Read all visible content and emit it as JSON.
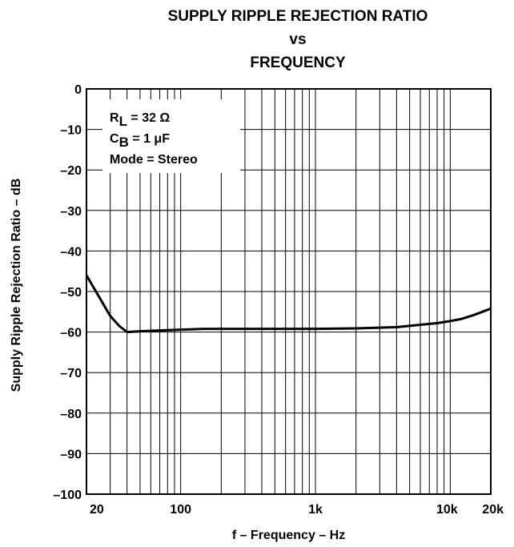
{
  "chart_data": {
    "type": "line",
    "title_lines": [
      "SUPPLY RIPPLE REJECTION RATIO",
      "vs",
      "FREQUENCY"
    ],
    "xlabel": "f – Frequency – Hz",
    "ylabel": "Supply Ripple Rejection Ratio – dB",
    "x_scale": "log",
    "xlim": [
      20,
      20000
    ],
    "ylim": [
      -100,
      0
    ],
    "x_ticks": [
      {
        "value": 20,
        "label": "20"
      },
      {
        "value": 100,
        "label": "100"
      },
      {
        "value": 1000,
        "label": "1k"
      },
      {
        "value": 10000,
        "label": "10k"
      },
      {
        "value": 20000,
        "label": "20k"
      }
    ],
    "y_ticks": [
      {
        "value": 0,
        "label": "0"
      },
      {
        "value": -10,
        "label": "–10"
      },
      {
        "value": -20,
        "label": "–20"
      },
      {
        "value": -30,
        "label": "–30"
      },
      {
        "value": -40,
        "label": "–40"
      },
      {
        "value": -50,
        "label": "–50"
      },
      {
        "value": -60,
        "label": "–60"
      },
      {
        "value": -70,
        "label": "–70"
      },
      {
        "value": -80,
        "label": "–80"
      },
      {
        "value": -90,
        "label": "–90"
      },
      {
        "value": -100,
        "label": "–100"
      }
    ],
    "grid": true,
    "annotations": [
      {
        "main": "R",
        "sub": "L",
        "rest": " = 32 Ω"
      },
      {
        "main": "C",
        "sub": "B",
        "rest": " = 1 μF"
      },
      {
        "main": "Mode = Stereo",
        "sub": "",
        "rest": ""
      }
    ],
    "series": [
      {
        "x": [
          20,
          25,
          30,
          35,
          40,
          50,
          70,
          100,
          150,
          200,
          300,
          500,
          1000,
          2000,
          4000,
          6000,
          8000,
          10000,
          12000,
          15000,
          20000
        ],
        "y": [
          -46,
          -51.5,
          -56,
          -58.5,
          -60,
          -59.8,
          -59.6,
          -59.4,
          -59.2,
          -59.2,
          -59.2,
          -59.2,
          -59.2,
          -59.1,
          -58.8,
          -58.2,
          -57.8,
          -57.3,
          -56.8,
          -55.8,
          -54.2
        ]
      }
    ]
  }
}
